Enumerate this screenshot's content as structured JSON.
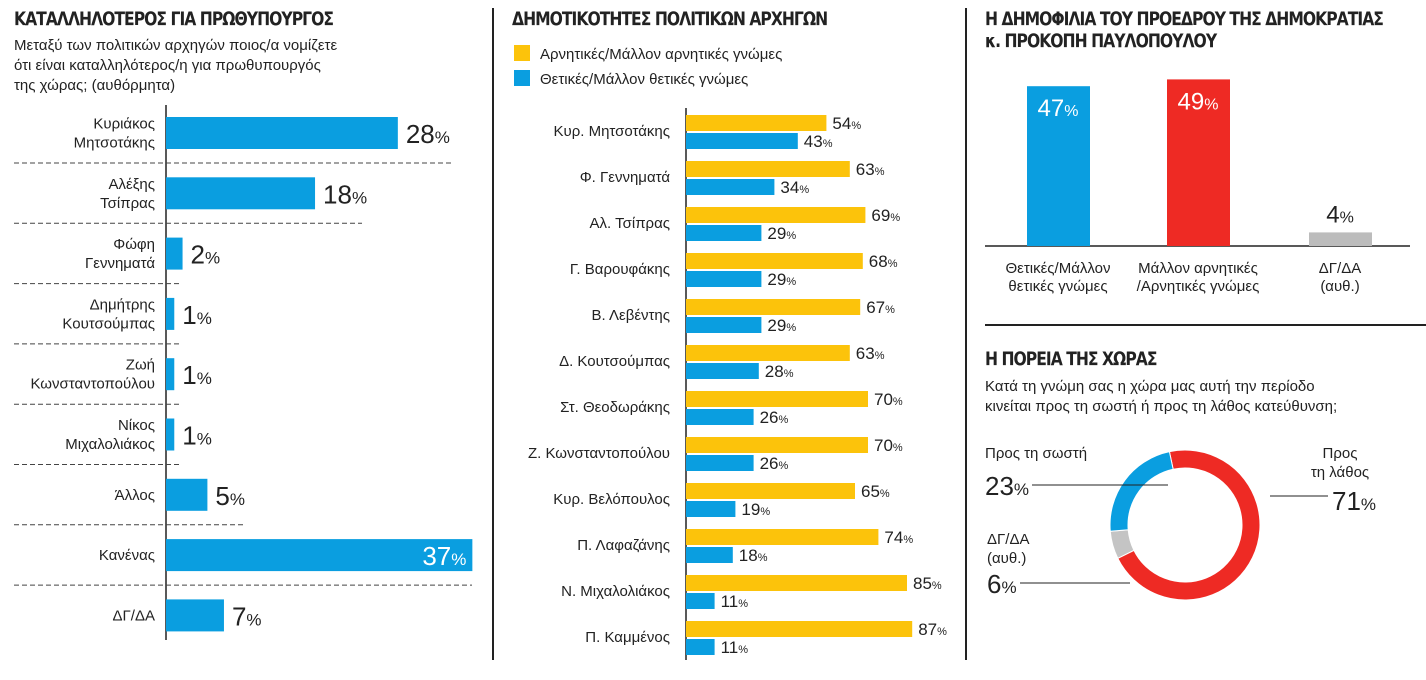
{
  "chart_data": [
    {
      "type": "bar",
      "orientation": "horizontal",
      "title": "ΚΑΤΑΛΛΗΛΟΤΕΡΟΣ ΓΙΑ ΠΡΩΘΥΠΟΥΡΓΟΣ",
      "subtitle": [
        "Μεταξύ των πολιτικών αρχηγών ποιος/α νομίζετε",
        "ότι είναι καταλληλότερος/η για πρωθυπουργός",
        "της χώρας; (αυθόρμητα)"
      ],
      "categories": [
        [
          "Κυριάκος",
          "Μητσοτάκης"
        ],
        [
          "Αλέξης",
          "Τσίπρας"
        ],
        [
          "Φώφη",
          "Γεννηματά"
        ],
        [
          "Δημήτρης",
          "Κουτσούμπας"
        ],
        [
          "Ζωή",
          "Κωνσταντοπούλου"
        ],
        [
          "Νίκος",
          "Μιχαλολιάκος"
        ],
        [
          "Άλλος"
        ],
        [
          "Κανένας"
        ],
        [
          "ΔΓ/ΔΑ"
        ]
      ],
      "values": [
        28,
        18,
        2,
        1,
        1,
        1,
        5,
        37,
        7
      ],
      "unit": "%",
      "color": "#0a9ee0"
    },
    {
      "type": "bar",
      "orientation": "horizontal",
      "title": "ΔΗΜΟΤΙΚΟΤΗΤΕΣ ΠΟΛΙΤΙΚΩΝ ΑΡΧΗΓΩΝ",
      "categories": [
        "Κυρ. Μητσοτάκης",
        "Φ. Γεννηματά",
        "Αλ. Τσίπρας",
        "Γ. Βαρουφάκης",
        "Β. Λεβέντης",
        "Δ. Κουτσούμπας",
        "Στ. Θεοδωράκης",
        "Ζ. Κωνσταντοπούλου",
        "Κυρ. Βελόπουλος",
        "Π. Λαφαζάνης",
        "Ν. Μιχαλολιάκος",
        "Π. Καμμένος"
      ],
      "series": [
        {
          "name": "Αρνητικές/Μάλλον αρνητικές γνώμες",
          "color": "#fcc30b",
          "values": [
            54,
            63,
            69,
            68,
            67,
            63,
            70,
            70,
            65,
            74,
            85,
            87
          ]
        },
        {
          "name": "Θετικές/Μάλλον θετικές γνώμες",
          "color": "#0a9ee0",
          "values": [
            43,
            34,
            29,
            29,
            29,
            28,
            26,
            26,
            19,
            18,
            11,
            11
          ]
        }
      ],
      "unit": "%",
      "legend": "top"
    },
    {
      "type": "bar",
      "title": [
        "Η ΔΗΜΟΦΙΛΙΑ ΤΟΥ ΠΡΟΕΔΡΟΥ ΤΗΣ ΔΗΜΟΚΡΑΤΙΑΣ",
        "κ. ΠΡΟΚΟΠΗ ΠΑΥΛΟΠΟΥΛΟΥ"
      ],
      "categories": [
        [
          "Θετικές/Μάλλον",
          "θετικές γνώμες"
        ],
        [
          "Μάλλον αρνητικές",
          "/Αρνητικές γνώμες"
        ],
        [
          "ΔΓ/ΔΑ",
          "(αυθ.)"
        ]
      ],
      "values": [
        47,
        49,
        4
      ],
      "colors": [
        "#0a9ee0",
        "#ee2a24",
        "#bcbcbc"
      ],
      "unit": "%"
    },
    {
      "type": "pie",
      "donut": true,
      "title": "Η ΠΟΡΕΙΑ ΤΗΣ ΧΩΡΑΣ",
      "subtitle": [
        "Κατά τη γνώμη σας η χώρα μας αυτή την περίοδο",
        "κινείται προς τη σωστή ή προς τη λάθος κατεύθυνση;"
      ],
      "slices": [
        {
          "label": [
            "Προς",
            "τη λάθος"
          ],
          "value": 71,
          "color": "#ee2a24"
        },
        {
          "label": [
            "ΔΓ/ΔΑ",
            "(αυθ.)"
          ],
          "value": 6,
          "color": "#c4c4c4"
        },
        {
          "label": [
            "Προς τη σωστή"
          ],
          "value": 23,
          "color": "#0a9ee0"
        }
      ],
      "unit": "%"
    }
  ]
}
